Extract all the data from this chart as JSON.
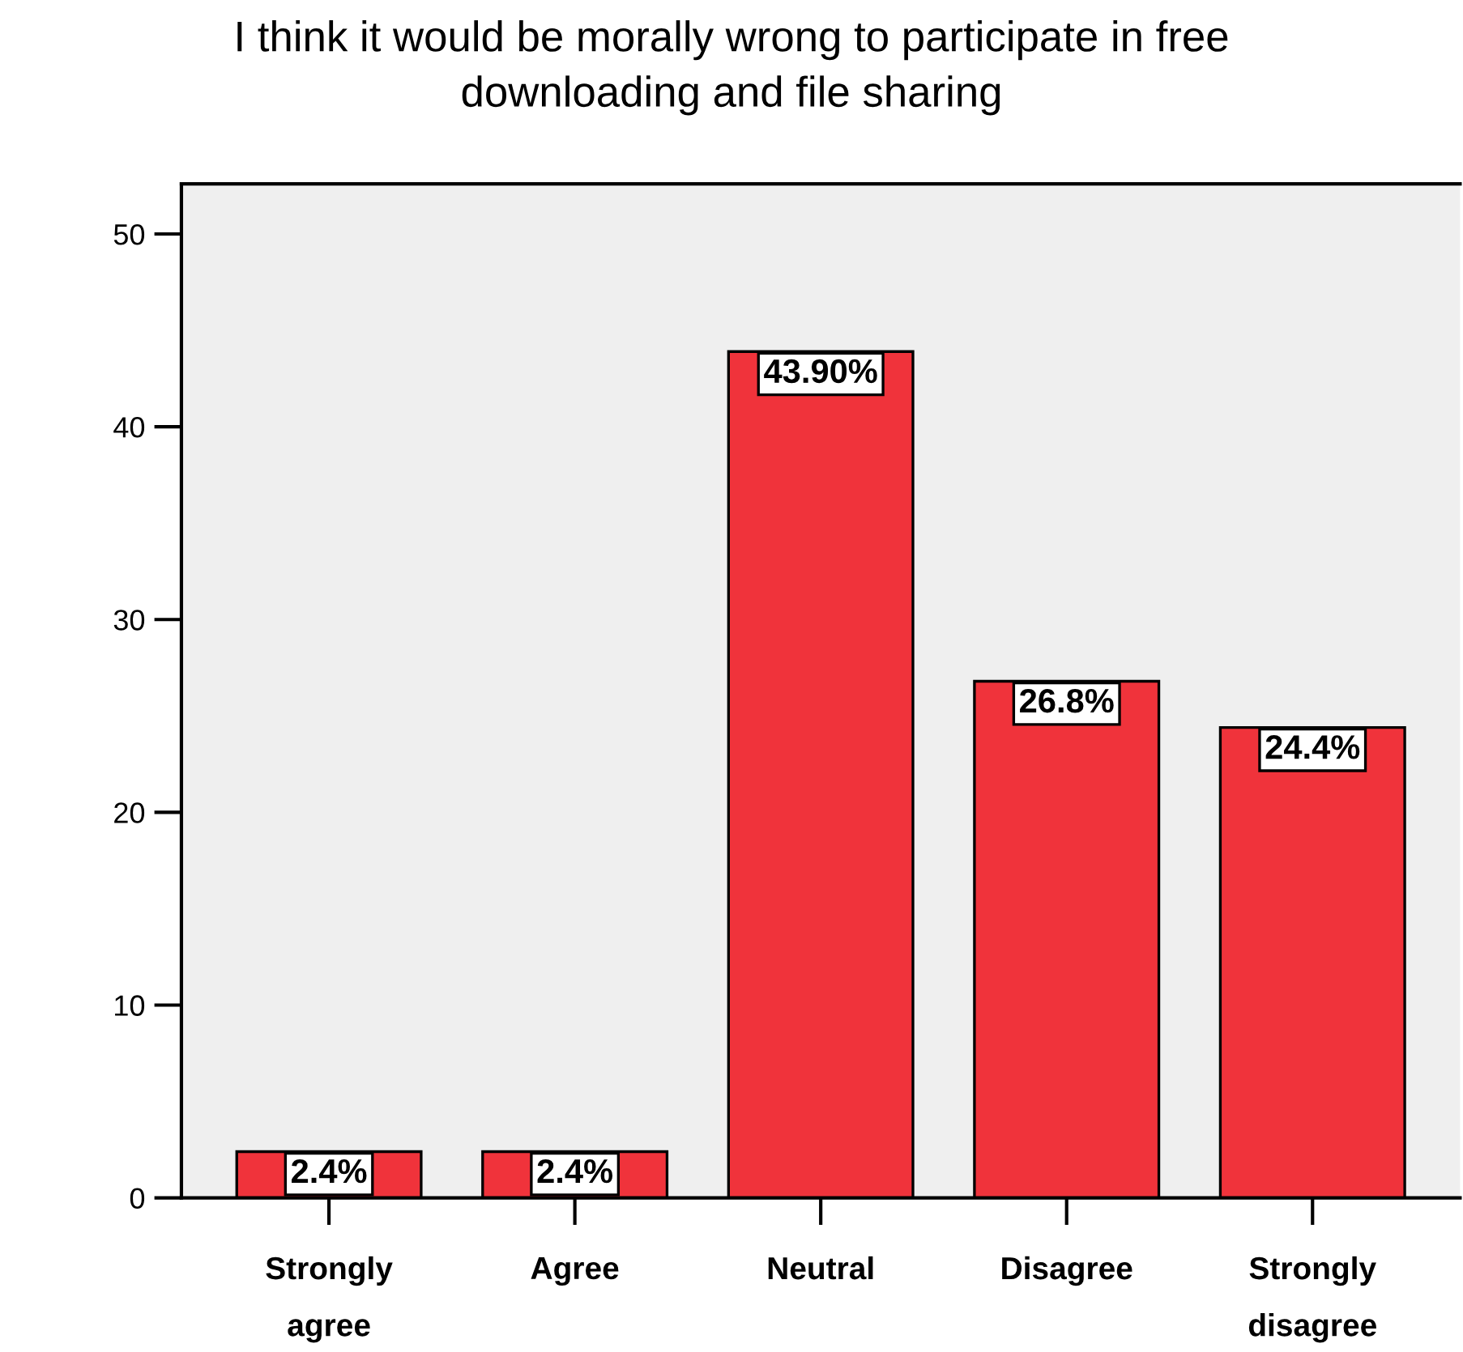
{
  "chart_data": {
    "type": "bar",
    "title": "I think it would be morally wrong to participate in free\ndownloading and file sharing",
    "categories": [
      "Strongly\nagree",
      "Agree",
      "Neutral",
      "Disagree",
      "Strongly\ndisagree"
    ],
    "values": [
      2.4,
      2.4,
      43.9,
      26.8,
      24.4
    ],
    "value_labels": [
      "2.4%",
      "2.4%",
      "43.90%",
      "26.8%",
      "24.4%"
    ],
    "color": "#f0333b",
    "ylim": [
      0,
      52.6
    ],
    "yticks": [
      0,
      10,
      20,
      30,
      40,
      50
    ],
    "grid": false
  }
}
